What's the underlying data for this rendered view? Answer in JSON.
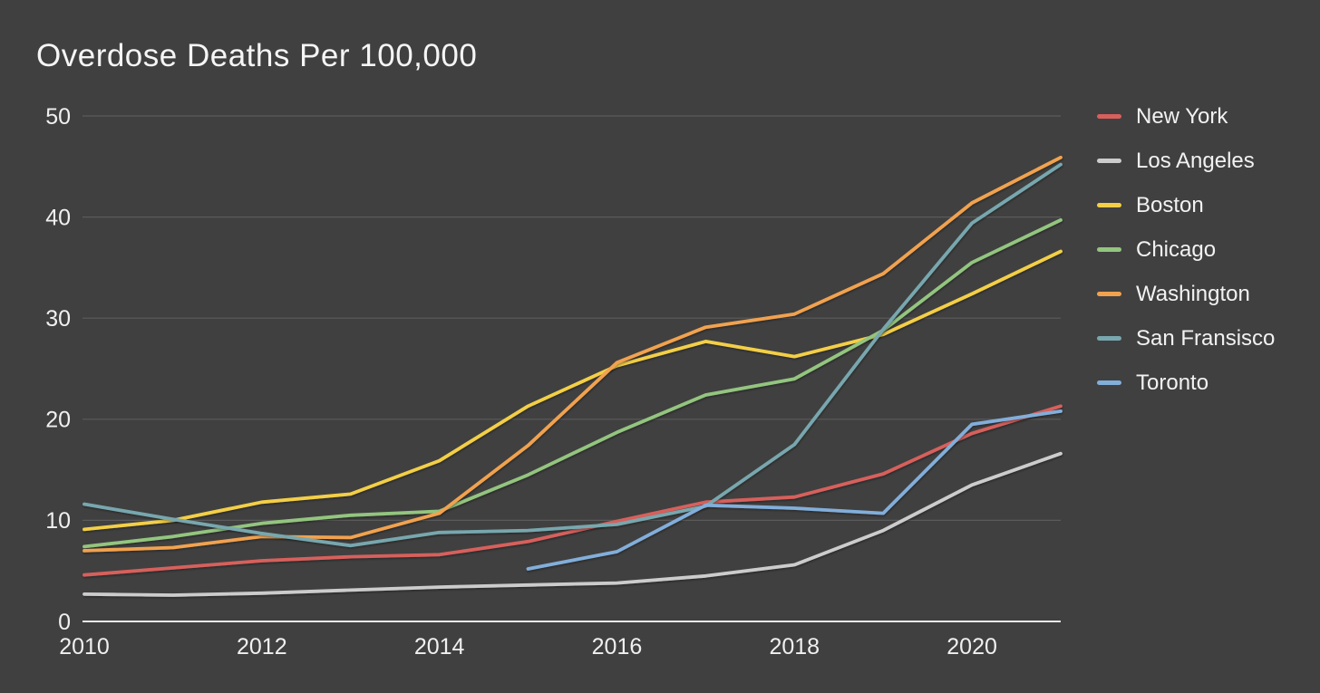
{
  "title": "Overdose Deaths Per 100,000",
  "colors": {
    "background": "#404040",
    "text": "#f2f2f2",
    "gridline": "#5b5b5b",
    "zero_axis": "#e8e8e8"
  },
  "chart_data": {
    "type": "line",
    "title": "Overdose Deaths Per 100,000",
    "x": [
      2010,
      2011,
      2012,
      2013,
      2014,
      2015,
      2016,
      2017,
      2018,
      2019,
      2020,
      2021
    ],
    "x_ticks": [
      2010,
      2012,
      2014,
      2016,
      2018,
      2020
    ],
    "y_ticks": [
      0,
      10,
      20,
      30,
      40,
      50
    ],
    "xlim": [
      2010,
      2021
    ],
    "ylim": [
      0,
      50
    ],
    "grid": "horizontal",
    "legend_position": "right",
    "series": [
      {
        "name": "New York",
        "color": "#d7605c",
        "values": [
          4.6,
          5.3,
          6.0,
          6.4,
          6.6,
          7.9,
          9.9,
          11.8,
          12.3,
          14.6,
          18.6,
          21.3
        ]
      },
      {
        "name": "Los Angeles",
        "color": "#cccccc",
        "values": [
          2.7,
          2.6,
          2.8,
          3.1,
          3.4,
          3.6,
          3.8,
          4.5,
          5.6,
          9.0,
          13.5,
          16.6
        ]
      },
      {
        "name": "Boston",
        "color": "#f3cf47",
        "values": [
          9.1,
          10.0,
          11.8,
          12.6,
          15.9,
          21.3,
          25.3,
          27.7,
          26.2,
          28.4,
          32.4,
          36.6
        ]
      },
      {
        "name": "Chicago",
        "color": "#93c57f",
        "values": [
          7.4,
          8.4,
          9.7,
          10.5,
          10.9,
          14.5,
          18.7,
          22.4,
          24.0,
          28.8,
          35.5,
          39.7
        ]
      },
      {
        "name": "Washington",
        "color": "#f1a24f",
        "values": [
          7.0,
          7.3,
          8.4,
          8.3,
          10.7,
          17.4,
          25.6,
          29.1,
          30.4,
          34.4,
          41.4,
          45.9
        ]
      },
      {
        "name": "San Fransisco",
        "color": "#78a7ae",
        "values": [
          11.6,
          10.1,
          8.7,
          7.5,
          8.8,
          9.0,
          9.6,
          11.4,
          17.5,
          28.9,
          39.4,
          45.2
        ]
      },
      {
        "name": "Toronto",
        "color": "#82aeda",
        "values": [
          null,
          null,
          null,
          null,
          null,
          5.2,
          6.9,
          11.5,
          11.2,
          10.7,
          19.5,
          20.8
        ]
      }
    ]
  }
}
